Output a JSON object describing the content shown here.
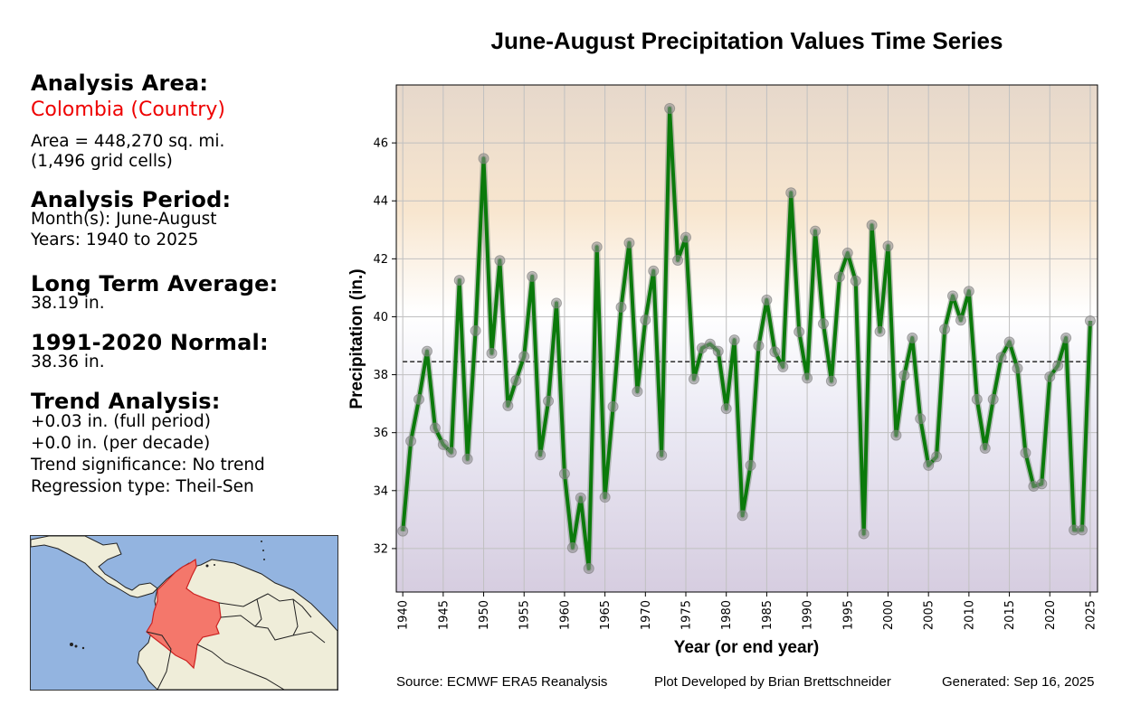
{
  "left_panel": {
    "analysis_area_heading": "Analysis Area:",
    "analysis_area_name": "Colombia (Country)",
    "area_line": "Area = 448,270 sq. mi.",
    "grid_cells_line": "(1,496 grid cells)",
    "analysis_period_heading": "Analysis Period:",
    "months_line": "Month(s): June-August",
    "years_line": "Years: 1940 to 2025",
    "long_term_avg_heading": "Long Term Average:",
    "long_term_avg_value": "38.19 in.",
    "normal_heading": "1991-2020 Normal:",
    "normal_value": "38.36 in.",
    "trend_heading": "Trend Analysis:",
    "trend_full_period": "+0.03 in. (full period)",
    "trend_per_decade": "+0.0 in. (per decade)",
    "trend_significance": "Trend significance: No trend",
    "regression_type": "Regression type: Theil-Sen"
  },
  "map": {
    "highlighted_region": "Colombia",
    "colors": {
      "ocean": "#93b4e0",
      "land": "#efedd9",
      "highlight": "#f4776b",
      "border": "#222222"
    }
  },
  "footer": {
    "source": "Source: ECMWF ERA5 Reanalysis",
    "developer": "Plot Developed by Brian Brettschneider",
    "generated": "Generated: Sep 16, 2025"
  },
  "colors": {
    "line": "#0b7a0b",
    "marker": "#8c8c8c",
    "grid": "#c0c0c0",
    "bg_top": "#e6d8cb",
    "bg_upper": "#f8e6cf",
    "bg_mid": "#ffffff",
    "bg_lower": "#ecebf5",
    "bg_bottom": "#d6cde0"
  },
  "chart_data": {
    "type": "line",
    "title": "June-August Precipitation Values Time Series",
    "xlabel": "Year (or end year)",
    "ylabel": "Precipitation (in.)",
    "xlim": [
      1939.2,
      2025.9
    ],
    "ylim": [
      30.5,
      48.0
    ],
    "grid": true,
    "x_ticks": [
      1940,
      1945,
      1950,
      1955,
      1960,
      1965,
      1970,
      1975,
      1980,
      1985,
      1990,
      1995,
      2000,
      2005,
      2010,
      2015,
      2020,
      2025
    ],
    "y_ticks": [
      32,
      34,
      36,
      38,
      40,
      42,
      44,
      46
    ],
    "reference_line": {
      "style": "dashed",
      "value": 38.45,
      "x_start": 1940,
      "x_end": 2025
    },
    "series": [
      {
        "name": "June-August Precipitation",
        "x": [
          1940,
          1941,
          1942,
          1943,
          1944,
          1945,
          1946,
          1947,
          1948,
          1949,
          1950,
          1951,
          1952,
          1953,
          1954,
          1955,
          1956,
          1957,
          1958,
          1959,
          1960,
          1961,
          1962,
          1963,
          1964,
          1965,
          1966,
          1967,
          1968,
          1969,
          1970,
          1971,
          1972,
          1973,
          1974,
          1975,
          1976,
          1977,
          1978,
          1979,
          1980,
          1981,
          1982,
          1983,
          1984,
          1985,
          1986,
          1987,
          1988,
          1989,
          1990,
          1991,
          1992,
          1993,
          1994,
          1995,
          1996,
          1997,
          1998,
          1999,
          2000,
          2001,
          2002,
          2003,
          2004,
          2005,
          2006,
          2007,
          2008,
          2009,
          2010,
          2011,
          2012,
          2013,
          2014,
          2015,
          2016,
          2017,
          2018,
          2019,
          2020,
          2021,
          2022,
          2023,
          2024,
          2025
        ],
        "values": [
          32.6,
          35.71,
          37.15,
          38.81,
          36.16,
          35.59,
          35.32,
          41.26,
          35.09,
          39.52,
          45.46,
          38.74,
          41.94,
          36.93,
          37.8,
          38.63,
          41.39,
          35.23,
          37.09,
          40.47,
          34.58,
          32.03,
          33.75,
          31.31,
          42.41,
          33.77,
          36.9,
          40.33,
          42.55,
          37.42,
          39.89,
          41.58,
          35.22,
          47.19,
          41.95,
          42.74,
          37.85,
          38.92,
          39.06,
          38.81,
          36.83,
          39.2,
          33.14,
          34.87,
          39.0,
          40.58,
          38.79,
          38.27,
          44.28,
          39.48,
          37.88,
          42.96,
          39.76,
          37.78,
          41.38,
          42.2,
          41.24,
          32.51,
          43.16,
          39.49,
          42.44,
          35.91,
          37.98,
          39.27,
          36.48,
          34.87,
          35.17,
          39.57,
          40.72,
          39.88,
          40.88,
          37.15,
          35.46,
          37.15,
          38.6,
          39.13,
          38.22,
          35.3,
          34.15,
          34.23,
          37.93,
          38.31,
          39.27,
          32.64,
          32.64,
          39.86
        ]
      }
    ]
  }
}
